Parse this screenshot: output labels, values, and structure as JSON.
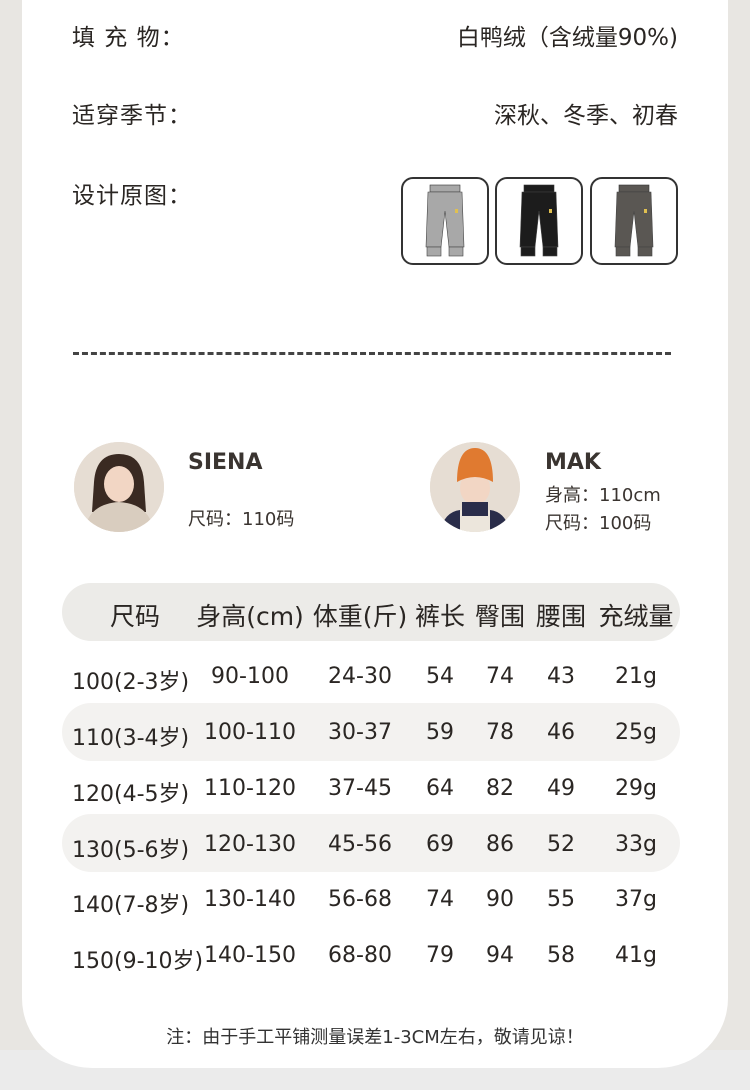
{
  "specs": [
    {
      "label": "填 充 物：",
      "value": "白鸭绒（含绒量90%)"
    },
    {
      "label": "适穿季节：",
      "value": "深秋、冬季、初春"
    },
    {
      "label": "设计原图：",
      "value": ""
    }
  ],
  "swatches": [
    {
      "color": "#a8a8a8"
    },
    {
      "color": "#1c1c1c"
    },
    {
      "color": "#5a5753"
    }
  ],
  "models": [
    {
      "name": "SIENA",
      "height": "",
      "size": "尺码：110码"
    },
    {
      "name": "MAK",
      "height": "身高：110cm",
      "size": "尺码：100码"
    }
  ],
  "table": {
    "headers": [
      "尺码",
      "身高(cm)",
      "体重(斤)",
      "裤长",
      "臀围",
      "腰围",
      "充绒量"
    ],
    "rows": [
      [
        "100(2-3岁)",
        "90-100",
        "24-30",
        "54",
        "74",
        "43",
        "21g"
      ],
      [
        "110(3-4岁)",
        "100-110",
        "30-37",
        "59",
        "78",
        "46",
        "25g"
      ],
      [
        "120(4-5岁)",
        "110-120",
        "37-45",
        "64",
        "82",
        "49",
        "29g"
      ],
      [
        "130(5-6岁)",
        "120-130",
        "45-56",
        "69",
        "86",
        "52",
        "33g"
      ],
      [
        "140(7-8岁)",
        "130-140",
        "56-68",
        "74",
        "90",
        "55",
        "37g"
      ],
      [
        "150(9-10岁)",
        "140-150",
        "68-80",
        "79",
        "94",
        "58",
        "41g"
      ]
    ]
  },
  "note": "注：由于手工平铺测量误差1-3CM左右，敬请见谅！"
}
